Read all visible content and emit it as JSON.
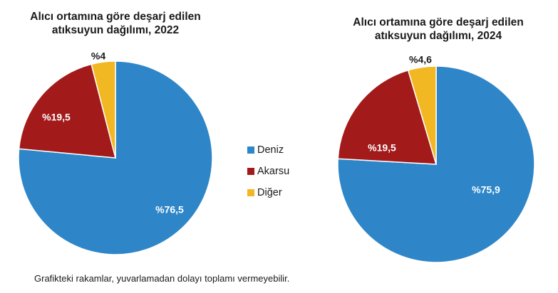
{
  "chart_data": [
    {
      "type": "pie",
      "title": "Alıcı ortamına göre deşarj edilen atıksuyun dağılımı, 2022",
      "title_lines": [
        "Alıcı ortamına göre deşarj edilen",
        "atıksuyun dağılımı, 2022"
      ],
      "slices": [
        {
          "name": "Deniz",
          "value": 76.5,
          "label": "%76,5",
          "color": "#2e86c8",
          "label_color": "#ffffff"
        },
        {
          "name": "Akarsu",
          "value": 19.5,
          "label": "%19,5",
          "color": "#a31a1a",
          "label_color": "#ffffff"
        },
        {
          "name": "Diğer",
          "value": 4,
          "label": "%4",
          "color": "#f2b824",
          "label_color": "#1a1a1a"
        }
      ]
    },
    {
      "type": "pie",
      "title": "Alıcı ortamına göre deşarj edilen atıksuyun dağılımı, 2024",
      "title_lines": [
        "Alıcı ortamına göre deşarj edilen",
        "atıksuyun dağılımı, 2024"
      ],
      "slices": [
        {
          "name": "Deniz",
          "value": 75.9,
          "label": "%75,9",
          "color": "#2e86c8",
          "label_color": "#ffffff"
        },
        {
          "name": "Akarsu",
          "value": 19.5,
          "label": "%19,5",
          "color": "#a31a1a",
          "label_color": "#ffffff"
        },
        {
          "name": "Diğer",
          "value": 4.6,
          "label": "%4,6",
          "color": "#f2b824",
          "label_color": "#1a1a1a"
        }
      ]
    }
  ],
  "legend": {
    "placement": "center",
    "items": [
      {
        "label": "Deniz",
        "color": "#2e86c8"
      },
      {
        "label": "Akarsu",
        "color": "#a31a1a"
      },
      {
        "label": "Diğer",
        "color": "#f2b824"
      }
    ]
  },
  "footnote": "Grafikteki rakamlar, yuvarlamadan dolayı toplamı vermeyebilir."
}
